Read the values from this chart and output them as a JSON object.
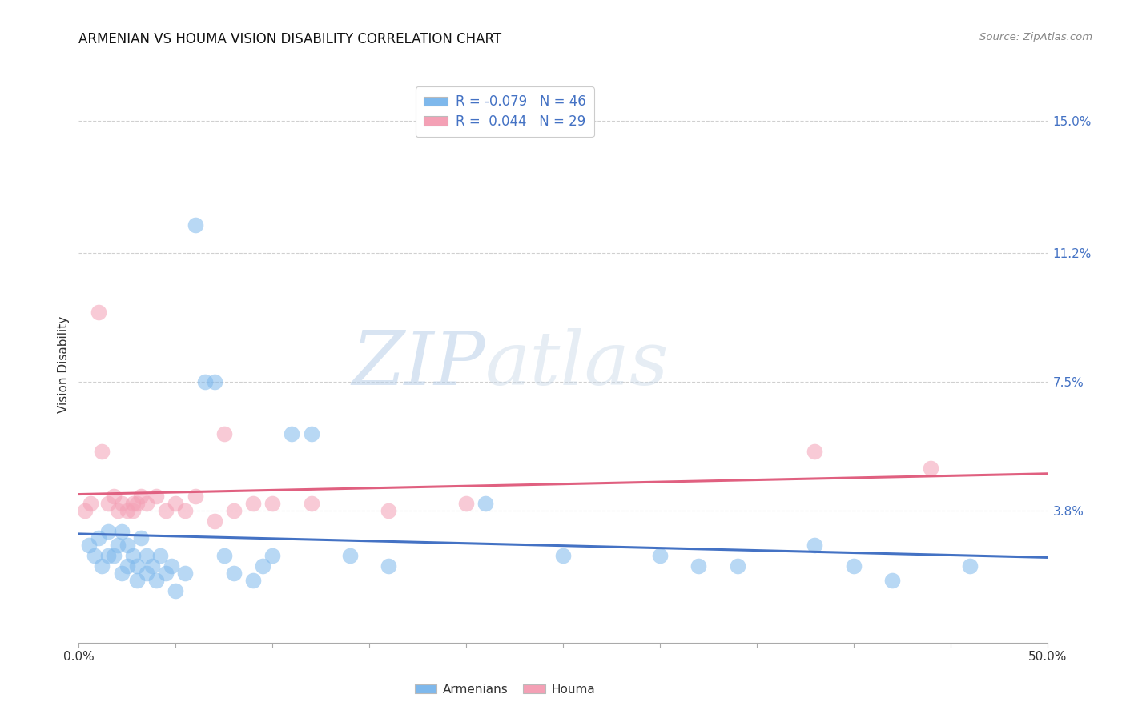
{
  "title": "ARMENIAN VS HOUMA VISION DISABILITY CORRELATION CHART",
  "source": "Source: ZipAtlas.com",
  "ylabel": "Vision Disability",
  "xlim": [
    0.0,
    0.5
  ],
  "ylim": [
    0.0,
    0.16
  ],
  "ytick_labels_right": [
    "15.0%",
    "11.2%",
    "7.5%",
    "3.8%"
  ],
  "ytick_vals_right": [
    0.15,
    0.112,
    0.075,
    0.038
  ],
  "armenian_R": -0.079,
  "armenian_N": 46,
  "houma_R": 0.044,
  "houma_N": 29,
  "armenian_color": "#7EB8EC",
  "houma_color": "#F4A0B5",
  "armenian_line_color": "#4472C4",
  "houma_line_color": "#E06080",
  "legend_label_armenians": "Armenians",
  "legend_label_houma": "Houma",
  "watermark_zip": "ZIP",
  "watermark_atlas": "atlas",
  "grid_color": "#d0d0d0",
  "armenian_x": [
    0.005,
    0.008,
    0.01,
    0.012,
    0.015,
    0.015,
    0.018,
    0.02,
    0.022,
    0.022,
    0.025,
    0.025,
    0.028,
    0.03,
    0.03,
    0.032,
    0.035,
    0.035,
    0.038,
    0.04,
    0.042,
    0.045,
    0.048,
    0.05,
    0.055,
    0.06,
    0.065,
    0.07,
    0.075,
    0.08,
    0.09,
    0.095,
    0.1,
    0.11,
    0.12,
    0.14,
    0.16,
    0.21,
    0.25,
    0.3,
    0.32,
    0.34,
    0.38,
    0.4,
    0.42,
    0.46
  ],
  "armenian_y": [
    0.028,
    0.025,
    0.03,
    0.022,
    0.025,
    0.032,
    0.025,
    0.028,
    0.02,
    0.032,
    0.022,
    0.028,
    0.025,
    0.018,
    0.022,
    0.03,
    0.02,
    0.025,
    0.022,
    0.018,
    0.025,
    0.02,
    0.022,
    0.015,
    0.02,
    0.12,
    0.075,
    0.075,
    0.025,
    0.02,
    0.018,
    0.022,
    0.025,
    0.06,
    0.06,
    0.025,
    0.022,
    0.04,
    0.025,
    0.025,
    0.022,
    0.022,
    0.028,
    0.022,
    0.018,
    0.022
  ],
  "houma_x": [
    0.003,
    0.006,
    0.01,
    0.012,
    0.015,
    0.018,
    0.02,
    0.022,
    0.025,
    0.028,
    0.028,
    0.03,
    0.032,
    0.035,
    0.04,
    0.045,
    0.05,
    0.055,
    0.06,
    0.07,
    0.075,
    0.08,
    0.09,
    0.1,
    0.12,
    0.16,
    0.2,
    0.38,
    0.44
  ],
  "houma_y": [
    0.038,
    0.04,
    0.095,
    0.055,
    0.04,
    0.042,
    0.038,
    0.04,
    0.038,
    0.038,
    0.04,
    0.04,
    0.042,
    0.04,
    0.042,
    0.038,
    0.04,
    0.038,
    0.042,
    0.035,
    0.06,
    0.038,
    0.04,
    0.04,
    0.04,
    0.038,
    0.04,
    0.055,
    0.05
  ]
}
